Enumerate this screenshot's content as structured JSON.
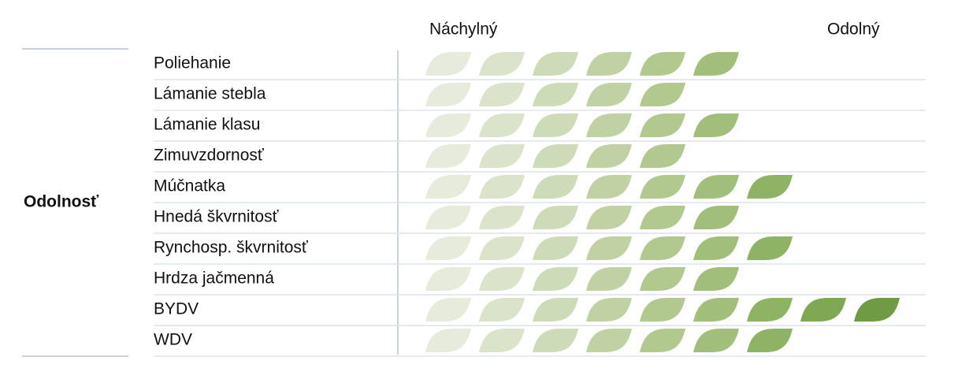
{
  "chart_data": {
    "type": "rating",
    "group_label": "Odolnosť",
    "scale_labels": [
      "Náchylný",
      "Odolný"
    ],
    "categories": [
      "Poliehanie",
      "Lámanie stebla",
      "Lámanie klasu",
      "Zimuvzdornosť",
      "Múčnatka",
      "Hnedá škvrnitosť",
      "Rynchosp. škvrnitosť",
      "Hrdza jačmenná",
      "BYDV",
      "WDV"
    ],
    "values": [
      6,
      5,
      6,
      5,
      7,
      6,
      7,
      6,
      9,
      7
    ],
    "colors": [
      "#e6ebdc",
      "#dbe4cb",
      "#cedbb8",
      "#c0d2a4",
      "#b1c88f",
      "#a1be7b",
      "#8fb365",
      "#7ea853",
      "#6e9b43"
    ]
  }
}
